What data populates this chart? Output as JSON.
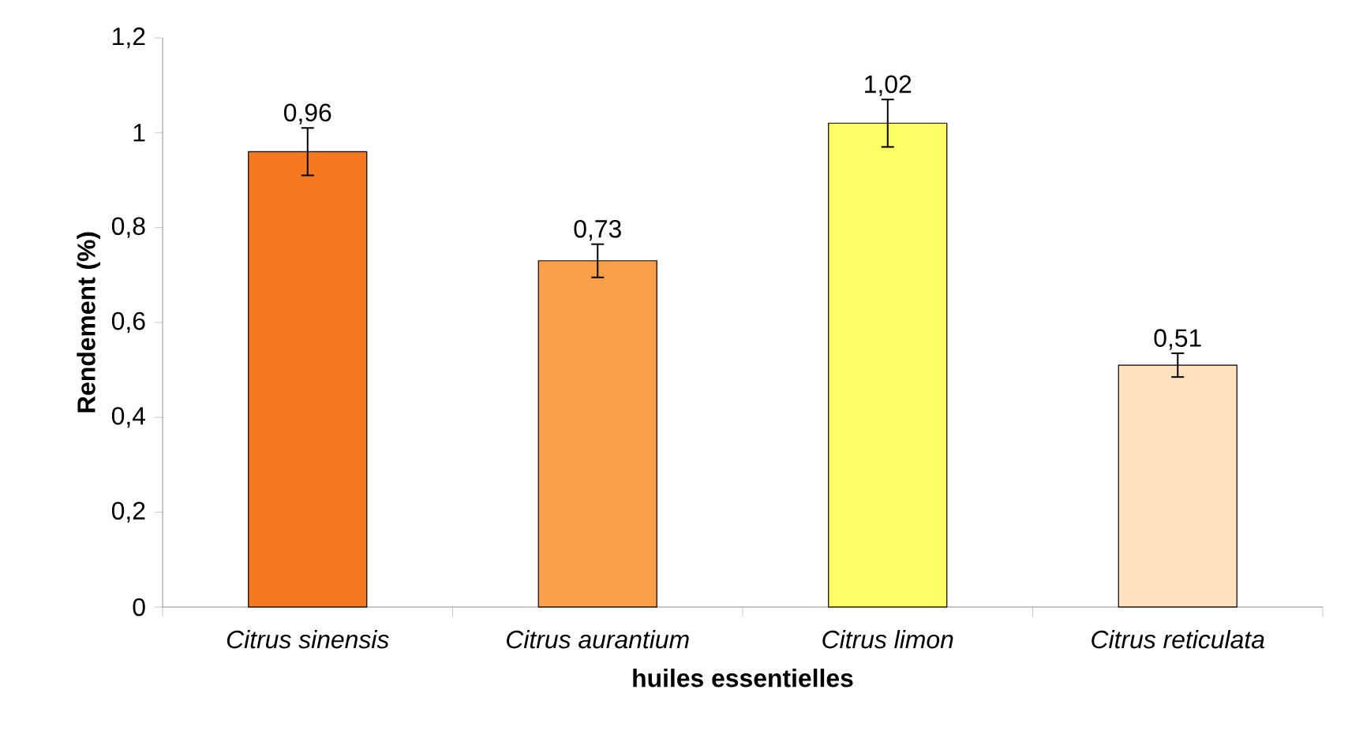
{
  "chart_data": {
    "type": "bar",
    "xlabel": "huiles essentielles",
    "ylabel": "Rendement (%)",
    "categories": [
      "Citrus sinensis",
      "Citrus aurantium",
      "Citrus limon",
      "Citrus reticulata"
    ],
    "values": [
      0.96,
      0.73,
      1.02,
      0.51
    ],
    "colors": [
      "#f47920",
      "#fba04a",
      "#ffff66",
      "#ffe0bf"
    ],
    "errors": [
      0.05,
      0.035,
      0.05,
      0.025
    ],
    "data_labels": true,
    "value_labels": [
      "0,96",
      "0,73",
      "1,02",
      "0,51"
    ],
    "ylim": [
      0,
      1.2
    ],
    "yticks": [
      0,
      {
        "value": 0.2,
        "label": "0,2"
      },
      {
        "value": 0.4,
        "label": "0,4"
      },
      {
        "value": 0.6,
        "label": "0,6"
      },
      {
        "value": 0.8,
        "label": "0,8"
      },
      1,
      {
        "value": 1.2,
        "label": "1,2"
      }
    ],
    "grid": false
  }
}
